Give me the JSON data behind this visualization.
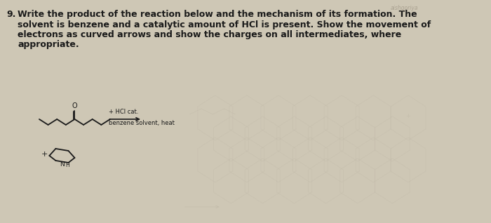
{
  "background_color": "#cec7b5",
  "text_color": "#1a1a1a",
  "question_number": "9.",
  "question_text_line1": "Write the product of the reaction below and the mechanism of its formation. The",
  "question_text_line2": "solvent is benzene and a catalytic amount of HCl is present. Show the movement of",
  "question_text_line3": "electrons as curved arrows and show the charges on all intermediates, where",
  "question_text_line4": "appropriate.",
  "reagent_label_line1": "+ HCl cat.",
  "reagent_label_line2": "benzene solvent, heat",
  "watermark_text": "aishgoriya",
  "figsize": [
    7.0,
    3.18
  ],
  "dpi": 100,
  "ghost_color": "#b8b0a0",
  "molecule_color": "#1a1a1a",
  "molecule_lw": 1.3
}
